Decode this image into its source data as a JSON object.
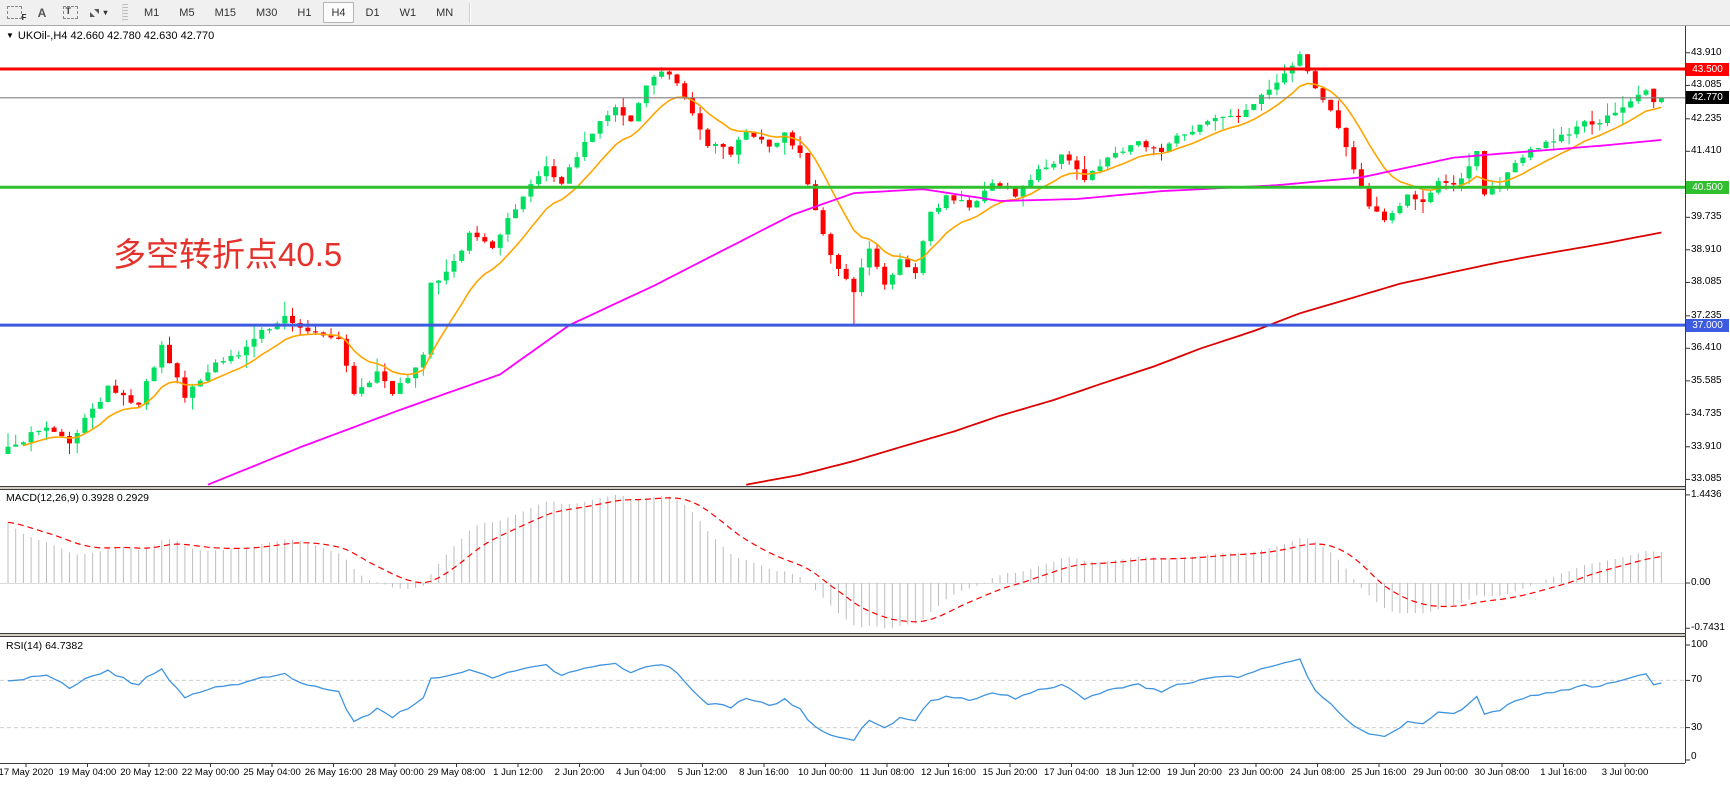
{
  "toolbar": {
    "tools": [
      {
        "name": "fibonacci-retracement",
        "glyph": "F"
      },
      {
        "name": "text-annotation",
        "glyph": "A"
      },
      {
        "name": "text-label",
        "glyph": "T"
      },
      {
        "name": "arrows-dropdown",
        "glyph": "▾"
      }
    ],
    "timeframes": [
      {
        "label": "M1",
        "active": false
      },
      {
        "label": "M5",
        "active": false
      },
      {
        "label": "M15",
        "active": false
      },
      {
        "label": "M30",
        "active": false
      },
      {
        "label": "H1",
        "active": false
      },
      {
        "label": "H4",
        "active": true
      },
      {
        "label": "D1",
        "active": false
      },
      {
        "label": "W1",
        "active": false
      },
      {
        "label": "MN",
        "active": false
      }
    ]
  },
  "chart": {
    "title": {
      "dropdown_glyph": "▼",
      "text": "UKOil-,H4 42.660 42.780 42.630 42.770",
      "symbol": "UKOil-",
      "period": "H4",
      "open": "42.660",
      "high": "42.780",
      "low": "42.630",
      "close": "42.770"
    },
    "annotation": {
      "text": "多空转折点40.5",
      "color": "#e5312b"
    },
    "price_scale_ticks": [
      {
        "label": "43.910",
        "value": 43.91
      },
      {
        "label": "43.085",
        "value": 43.085
      },
      {
        "label": "42.235",
        "value": 42.235
      },
      {
        "label": "41.410",
        "value": 41.41
      },
      {
        "label": "39.735",
        "value": 39.735
      },
      {
        "label": "38.910",
        "value": 38.91
      },
      {
        "label": "38.085",
        "value": 38.085
      },
      {
        "label": "37.235",
        "value": 37.235
      },
      {
        "label": "36.410",
        "value": 36.41
      },
      {
        "label": "35.585",
        "value": 35.585
      },
      {
        "label": "34.735",
        "value": 34.735
      },
      {
        "label": "33.910",
        "value": 33.91
      },
      {
        "label": "33.085",
        "value": 33.085
      }
    ],
    "time_labels": [
      "17 May 2020",
      "19 May 04:00",
      "20 May 12:00",
      "22 May 00:00",
      "25 May 04:00",
      "26 May 16:00",
      "28 May 00:00",
      "29 May 08:00",
      "1 Jun 12:00",
      "2 Jun 20:00",
      "4 Jun 04:00",
      "5 Jun 12:00",
      "8 Jun 16:00",
      "10 Jun 00:00",
      "11 Jun 08:00",
      "12 Jun 16:00",
      "15 Jun 20:00",
      "17 Jun 04:00",
      "18 Jun 12:00",
      "19 Jun 20:00",
      "23 Jun 00:00",
      "24 Jun 08:00",
      "25 Jun 16:00",
      "29 Jun 00:00",
      "30 Jun 08:00",
      "1 Jul 16:00",
      "3 Jul 00:00"
    ],
    "levels": [
      {
        "name": "resistance-line",
        "value": "43.500",
        "price": 43.5,
        "color": "#ff0000"
      },
      {
        "name": "pivot-line",
        "value": "40.500",
        "price": 40.5,
        "color": "#2fbf2f"
      },
      {
        "name": "support-line",
        "value": "37.000",
        "price": 37.0,
        "color": "#3c5be0"
      }
    ],
    "current_price": {
      "value": "42.770",
      "price": 42.77,
      "line_color": "#808080",
      "badge_color": "#000000"
    }
  },
  "indicators": {
    "macd": {
      "label": "MACD(12,26,9) 0.3928 0.2929",
      "fast": 12,
      "slow": 26,
      "signal": 9,
      "value": "0.3928",
      "signal_value": "0.2929",
      "scale": [
        {
          "label": "1.4436",
          "value": 1.4436
        },
        {
          "label": "0.00",
          "value": 0
        },
        {
          "label": "-0.7431",
          "value": -0.7431
        }
      ]
    },
    "rsi": {
      "label": "RSI(14) 64.7382",
      "period": 14,
      "value": "64.7382",
      "level_lines": [
        70,
        30
      ],
      "scale": [
        {
          "label": "100",
          "value": 100
        },
        {
          "label": "70",
          "value": 70
        },
        {
          "label": "30",
          "value": 30
        },
        {
          "label": "0",
          "value": 0
        }
      ]
    }
  },
  "chart_data": {
    "type": "candlestick",
    "bars": 216,
    "timeframe": "H4",
    "price_path": [
      [
        0,
        33.85
      ],
      [
        5,
        34.45
      ],
      [
        8,
        34.05
      ],
      [
        13,
        35.4
      ],
      [
        17,
        35.0
      ],
      [
        20,
        36.5
      ],
      [
        23,
        35.2
      ],
      [
        27,
        36.0
      ],
      [
        30,
        36.3
      ],
      [
        33,
        36.8
      ],
      [
        36,
        37.2
      ],
      [
        39,
        36.9
      ],
      [
        43,
        36.6
      ],
      [
        45,
        35.2
      ],
      [
        48,
        35.8
      ],
      [
        50,
        35.3
      ],
      [
        53,
        35.9
      ],
      [
        54,
        36.3
      ],
      [
        55,
        38.0
      ],
      [
        58,
        38.6
      ],
      [
        60,
        39.3
      ],
      [
        63,
        39.0
      ],
      [
        67,
        40.3
      ],
      [
        70,
        41.0
      ],
      [
        72,
        40.6
      ],
      [
        76,
        41.9
      ],
      [
        79,
        42.5
      ],
      [
        81,
        42.2
      ],
      [
        83,
        43.1
      ],
      [
        85,
        43.4
      ],
      [
        87,
        43.2
      ],
      [
        89,
        42.4
      ],
      [
        91,
        41.6
      ],
      [
        94,
        41.4
      ],
      [
        96,
        41.9
      ],
      [
        99,
        41.5
      ],
      [
        101,
        41.9
      ],
      [
        103,
        41.3
      ],
      [
        106,
        39.3
      ],
      [
        108,
        38.4
      ],
      [
        110,
        37.9
      ],
      [
        112,
        38.9
      ],
      [
        114,
        38.1
      ],
      [
        116,
        38.6
      ],
      [
        118,
        38.3
      ],
      [
        120,
        39.8
      ],
      [
        122,
        40.3
      ],
      [
        125,
        40.0
      ],
      [
        128,
        40.6
      ],
      [
        131,
        40.3
      ],
      [
        134,
        40.9
      ],
      [
        137,
        41.3
      ],
      [
        140,
        40.7
      ],
      [
        143,
        41.2
      ],
      [
        147,
        41.6
      ],
      [
        150,
        41.4
      ],
      [
        153,
        41.9
      ],
      [
        157,
        42.2
      ],
      [
        161,
        42.4
      ],
      [
        164,
        43.0
      ],
      [
        167,
        43.6
      ],
      [
        168,
        43.85
      ],
      [
        169,
        43.4
      ],
      [
        172,
        42.4
      ],
      [
        175,
        41.0
      ],
      [
        177,
        40.0
      ],
      [
        179,
        39.7
      ],
      [
        182,
        40.3
      ],
      [
        184,
        40.2
      ],
      [
        186,
        40.6
      ],
      [
        188,
        40.5
      ],
      [
        190,
        41.1
      ],
      [
        191,
        41.4
      ],
      [
        192,
        40.3
      ],
      [
        194,
        40.6
      ],
      [
        196,
        41.1
      ],
      [
        198,
        41.4
      ],
      [
        200,
        41.6
      ],
      [
        203,
        41.9
      ],
      [
        205,
        42.1
      ],
      [
        207,
        42.2
      ],
      [
        209,
        42.4
      ],
      [
        211,
        42.6
      ],
      [
        213,
        43.0
      ],
      [
        214,
        42.85
      ],
      [
        215,
        42.77
      ]
    ],
    "forced_candles": {
      "85": {
        "h": 43.55
      },
      "110": {
        "l": 37.0
      },
      "168": {
        "h": 43.95
      },
      "214": {
        "o": 43.0,
        "c": 42.66
      },
      "215": {
        "o": 42.66,
        "h": 42.78,
        "l": 42.63,
        "c": 42.77
      }
    },
    "ma_fast_period": 10,
    "ma_mid_path": [
      [
        26,
        32.95
      ],
      [
        38,
        33.9
      ],
      [
        51,
        34.85
      ],
      [
        64,
        35.75
      ],
      [
        73,
        37.0
      ],
      [
        84,
        38.0
      ],
      [
        93,
        38.9
      ],
      [
        102,
        39.8
      ],
      [
        110,
        40.35
      ],
      [
        119,
        40.45
      ],
      [
        129,
        40.15
      ],
      [
        139,
        40.2
      ],
      [
        150,
        40.4
      ],
      [
        165,
        40.55
      ],
      [
        176,
        40.75
      ],
      [
        188,
        41.25
      ],
      [
        194,
        41.35
      ],
      [
        207,
        41.55
      ],
      [
        215,
        41.7
      ]
    ],
    "ma_slow_path": [
      [
        96,
        32.95
      ],
      [
        103,
        33.2
      ],
      [
        110,
        33.55
      ],
      [
        116,
        33.9
      ],
      [
        123,
        34.3
      ],
      [
        129,
        34.7
      ],
      [
        136,
        35.1
      ],
      [
        142,
        35.5
      ],
      [
        149,
        35.95
      ],
      [
        155,
        36.4
      ],
      [
        162,
        36.85
      ],
      [
        168,
        37.3
      ],
      [
        175,
        37.7
      ],
      [
        181,
        38.05
      ],
      [
        188,
        38.35
      ],
      [
        194,
        38.6
      ],
      [
        201,
        38.85
      ],
      [
        207,
        39.05
      ],
      [
        215,
        39.35
      ]
    ],
    "colors": {
      "bull": "#00df60",
      "bear": "#ff0000",
      "ma_fast": "#ffa500",
      "ma_mid": "#ff00ff",
      "ma_slow": "#dd0000",
      "macd_hist": "#bdbdbd",
      "macd_signal": "#ff0000",
      "rsi_line": "#3f94e0",
      "rsi_level_dash": "#cfcfcf",
      "axis": "#3c3c3c"
    }
  }
}
